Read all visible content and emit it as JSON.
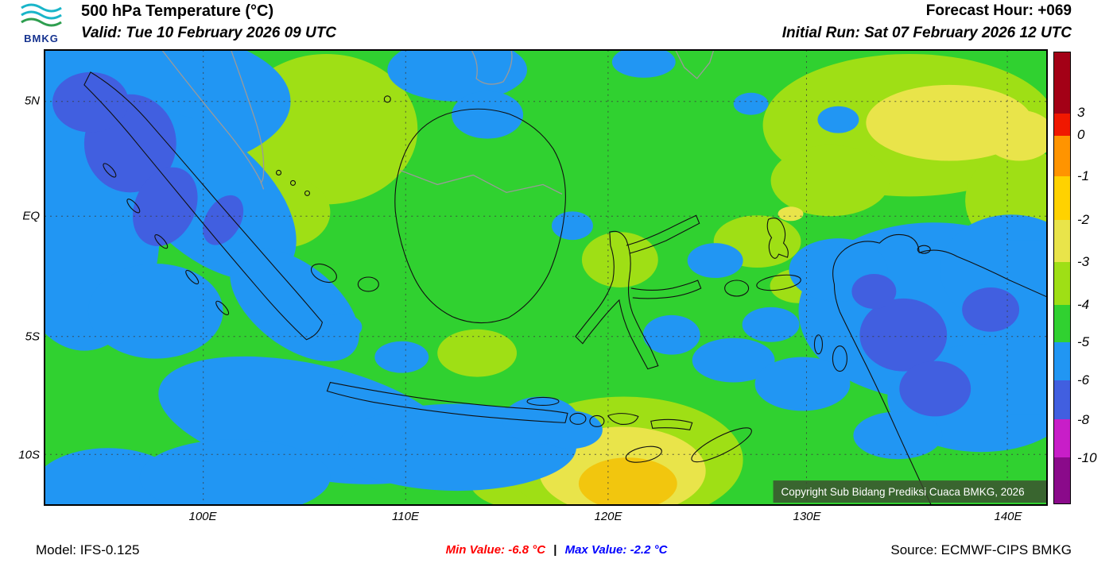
{
  "header": {
    "logo": "BMKG",
    "title": "500 hPa Temperature (°C)",
    "valid": "Valid: Tue 10 February 2026 09 UTC",
    "forecast_hour": "Forecast Hour: +069",
    "initial_run": "Initial Run: Sat 07 February 2026 12 UTC"
  },
  "map": {
    "lat_labels": [
      "5N",
      "EQ",
      "5S",
      "10S"
    ],
    "lon_labels": [
      "100E",
      "110E",
      "120E",
      "130E",
      "140E"
    ],
    "copyright": "Copyright Sub Bidang Prediksi Cuaca BMKG, 2026"
  },
  "colorbar": {
    "tick_labels": [
      "3",
      "0",
      "-1",
      "-2",
      "-3",
      "-4",
      "-5",
      "-6",
      "-8",
      "-10"
    ],
    "colors": [
      "#a30016",
      "#f01800",
      "#ff9400",
      "#ffd200",
      "#e9e44a",
      "#9fdf15",
      "#30d130",
      "#2196f3",
      "#415fe0",
      "#c81ec8",
      "#8a0a8a"
    ]
  },
  "footer": {
    "model": "Model: IFS-0.125",
    "min_label": "Min Value: -6.8 °C",
    "separator": "|",
    "max_label": "Max Value: -2.2 °C",
    "source": "Source: ECMWF-CIPS BMKG"
  },
  "chart_data": {
    "type": "heatmap",
    "title": "500 hPa Temperature (°C)",
    "valid_time": "Tue 10 February 2026 09 UTC",
    "initial_run": "Sat 07 February 2026 12 UTC",
    "forecast_hour": "+069",
    "model": "IFS-0.125",
    "source": "ECMWF-CIPS BMKG",
    "min_value_c": -6.8,
    "max_value_c": -2.2,
    "lat_ticks": [
      "5N",
      "EQ",
      "5S",
      "10S"
    ],
    "lon_ticks": [
      "100E",
      "110E",
      "120E",
      "130E",
      "140E"
    ],
    "colorbar_boundaries_c": [
      -10,
      -8,
      -6,
      -5,
      -4,
      -3,
      -2,
      -1,
      0,
      3
    ],
    "dominant_value_range_c": [
      -5,
      -4
    ]
  }
}
